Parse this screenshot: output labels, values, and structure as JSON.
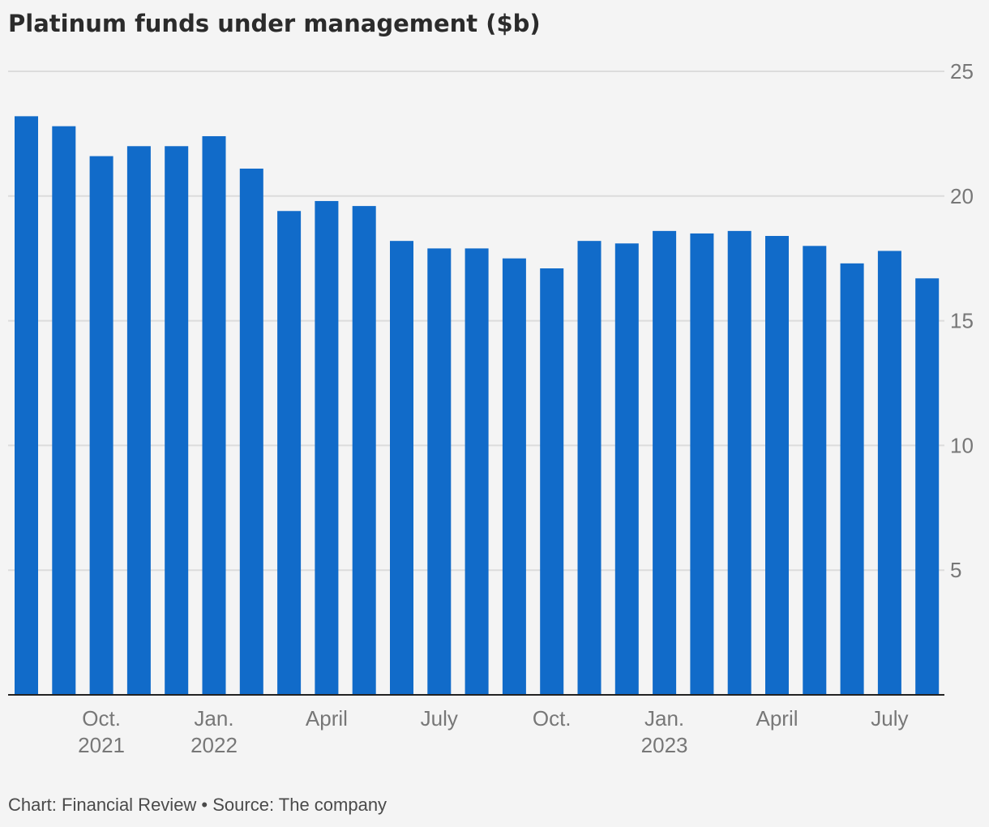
{
  "title": "Platinum funds under management ($b)",
  "footer": "Chart: Financial Review • Source: The company",
  "colors": {
    "bar": "#116bc9",
    "grid": "#dcdcdc",
    "axis": "#222222",
    "text": "#777777",
    "background": "#f4f4f4"
  },
  "chart_data": {
    "type": "bar",
    "series": [
      {
        "name": "",
        "values": [
          23.2,
          22.8,
          21.6,
          22.0,
          22.0,
          22.4,
          21.1,
          19.4,
          19.8,
          19.6,
          18.2,
          17.9,
          17.9,
          17.5,
          17.1,
          18.2,
          18.1,
          18.6,
          18.5,
          18.6,
          18.4,
          18.0,
          17.3,
          17.8,
          16.7
        ]
      }
    ],
    "x_ticks": [
      {
        "index": 2,
        "label": "Oct.",
        "sublabel": "2021"
      },
      {
        "index": 5,
        "label": "Jan.",
        "sublabel": "2022"
      },
      {
        "index": 8,
        "label": "April",
        "sublabel": ""
      },
      {
        "index": 11,
        "label": "July",
        "sublabel": ""
      },
      {
        "index": 14,
        "label": "Oct.",
        "sublabel": ""
      },
      {
        "index": 17,
        "label": "Jan.",
        "sublabel": "2023"
      },
      {
        "index": 20,
        "label": "April",
        "sublabel": ""
      },
      {
        "index": 23,
        "label": "July",
        "sublabel": ""
      }
    ],
    "y_ticks": [
      5,
      10,
      15,
      20,
      25
    ],
    "ylim": [
      0,
      25
    ],
    "grid": true,
    "y_axis_position": "right",
    "xlabel": "",
    "ylabel": ""
  }
}
